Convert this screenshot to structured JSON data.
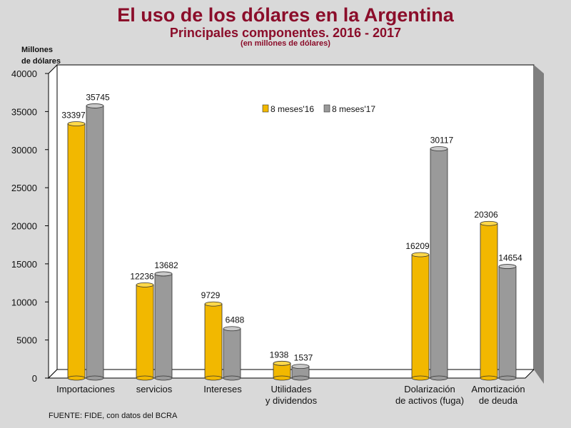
{
  "chart_data": {
    "type": "bar",
    "title": "El uso de los dólares en la Argentina",
    "subtitle": "Principales componentes. 2016 - 2017",
    "units_note": "(en millones de dólares)",
    "ylabel_line1": "Millones",
    "ylabel_line2": "de dólares",
    "ylim": [
      0,
      40000
    ],
    "yticks": [
      0,
      5000,
      10000,
      15000,
      20000,
      25000,
      30000,
      35000,
      40000
    ],
    "categories": [
      [
        "Importaciones"
      ],
      [
        "servicios"
      ],
      [
        "Intereses"
      ],
      [
        "Utilidades",
        "y dividendos"
      ],
      [
        "Dolarización",
        "de activos (fuga)"
      ],
      [
        "Amortización",
        "de deuda"
      ]
    ],
    "series": [
      {
        "name": "8 meses'16",
        "color": "#f2b800",
        "values": [
          33397,
          12236,
          9729,
          1938,
          16209,
          20306
        ]
      },
      {
        "name": "8 meses'17",
        "color": "#9a9a9a",
        "values": [
          35745,
          13682,
          6488,
          1537,
          30117,
          14654
        ]
      }
    ],
    "legend_position": "top-right",
    "source": "FUENTE: FIDE, con datos del BCRA"
  }
}
